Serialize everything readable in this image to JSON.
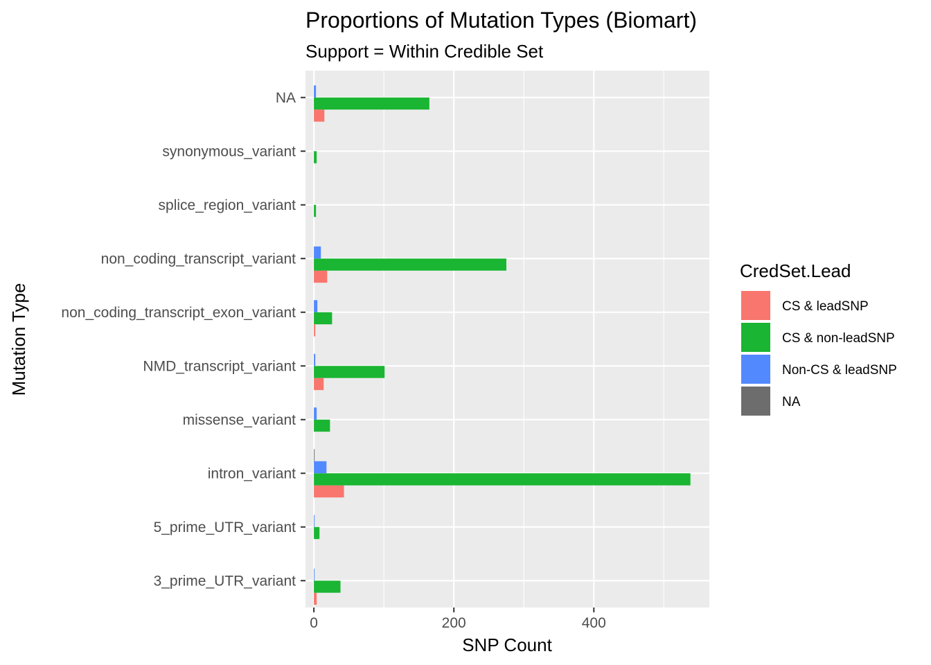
{
  "chart_data": {
    "type": "bar",
    "orientation": "horizontal",
    "title": "Proportions of Mutation Types (Biomart)",
    "subtitle": "Support = Within Credible Set",
    "xlabel": "SNP Count",
    "ylabel": "Mutation Type",
    "xlim": [
      -12,
      565
    ],
    "xticks": [
      0,
      200,
      400
    ],
    "grid": true,
    "legend": {
      "title": "CredSet.Lead",
      "position": "right"
    },
    "categories": [
      "3_prime_UTR_variant",
      "5_prime_UTR_variant",
      "intron_variant",
      "missense_variant",
      "NMD_transcript_variant",
      "non_coding_transcript_exon_variant",
      "non_coding_transcript_variant",
      "splice_region_variant",
      "synonymous_variant",
      "NA"
    ],
    "series": [
      {
        "name": "CS & leadSNP",
        "color": "#F8766D",
        "values": [
          4,
          0,
          43,
          0,
          14,
          2,
          19,
          0,
          0,
          15
        ]
      },
      {
        "name": "CS & non-leadSNP",
        "color": "#1AB532",
        "values": [
          38,
          8,
          538,
          23,
          101,
          26,
          275,
          3,
          4,
          165
        ]
      },
      {
        "name": "Non-CS & leadSNP",
        "color": "#5289FF",
        "values": [
          1,
          1,
          18,
          4,
          2,
          5,
          10,
          0,
          0,
          3
        ]
      },
      {
        "name": "NA",
        "color": "#6D6D6D",
        "values": [
          0,
          0,
          1,
          0,
          0,
          0,
          0,
          0,
          0,
          0
        ]
      }
    ]
  }
}
